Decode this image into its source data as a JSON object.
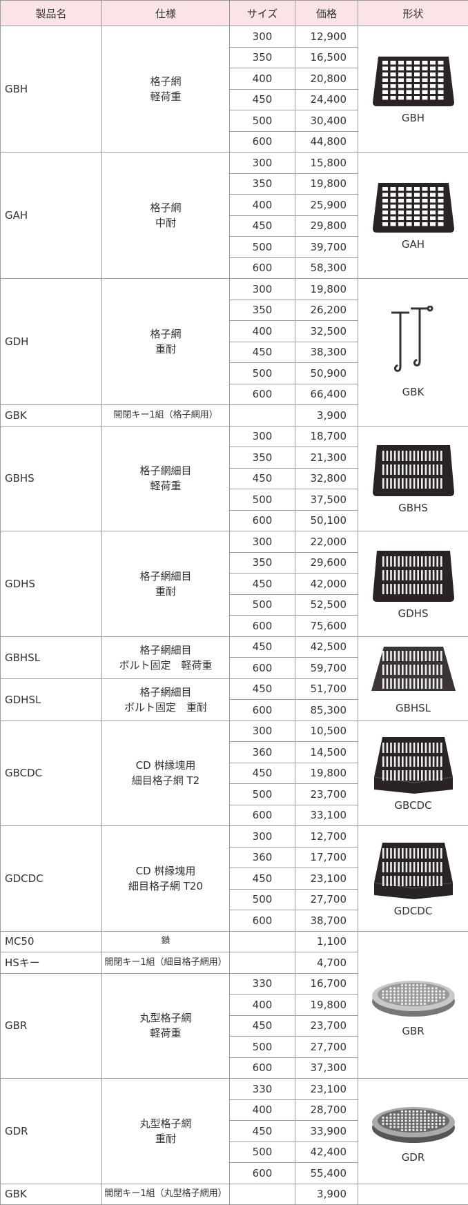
{
  "header": [
    "製品名",
    "仕様",
    "サイズ",
    "価格",
    "形状"
  ],
  "groups": [
    {
      "name": "GBH",
      "spec": [
        "格子網",
        "軽荷重"
      ],
      "rows": [
        {
          "size": 300,
          "price": "12,900"
        },
        {
          "size": 350,
          "price": "16,500"
        },
        {
          "size": 400,
          "price": "20,800"
        },
        {
          "size": 450,
          "price": "24,400"
        },
        {
          "size": 500,
          "price": "30,400"
        },
        {
          "size": 600,
          "price": "44,800"
        }
      ],
      "image": {
        "label": "GBH"
      }
    },
    {
      "name": "GAH",
      "spec": [
        "格子網",
        "中耐"
      ],
      "rows": [
        {
          "size": 300,
          "price": "15,800"
        },
        {
          "size": 350,
          "price": "19,800"
        },
        {
          "size": 400,
          "price": "25,900"
        },
        {
          "size": 450,
          "price": "29,800"
        },
        {
          "size": 500,
          "price": "39,700"
        },
        {
          "size": 600,
          "price": "58,300"
        }
      ],
      "image": {
        "label": "GAH"
      }
    },
    {
      "name": "GDH",
      "spec": [
        "格子網",
        "重耐"
      ],
      "rows": [
        {
          "size": 300,
          "price": "19,800"
        },
        {
          "size": 350,
          "price": "26,200"
        },
        {
          "size": 400,
          "price": "32,500"
        },
        {
          "size": 450,
          "price": "38,300"
        },
        {
          "size": 500,
          "price": "50,900"
        },
        {
          "size": 600,
          "price": "66,400"
        }
      ]
    },
    {
      "name": "GBK",
      "spec": [
        "開閉キー1組（格子網用）"
      ],
      "rows": [
        {
          "price": "3,900"
        }
      ],
      "image": {
        "label": "GBK"
      }
    },
    {
      "name": "GBHS",
      "spec": [
        "格子網細目",
        "軽荷重"
      ],
      "rows": [
        {
          "size": 300,
          "price": "18,700"
        },
        {
          "size": 350,
          "price": "21,300"
        },
        {
          "size": 450,
          "price": "32,800"
        },
        {
          "size": 500,
          "price": "37,500"
        },
        {
          "size": 600,
          "price": "50,100"
        }
      ],
      "image": {
        "label": "GBHS"
      }
    },
    {
      "name": "GDHS",
      "spec": [
        "格子網細目",
        "重耐"
      ],
      "rows": [
        {
          "size": 300,
          "price": "22,000"
        },
        {
          "size": 350,
          "price": "29,600"
        },
        {
          "size": 450,
          "price": "42,000"
        },
        {
          "size": 500,
          "price": "52,500"
        },
        {
          "size": 600,
          "price": "75,600"
        }
      ],
      "image": {
        "label": "GDHS"
      }
    },
    {
      "name": "GBHSL",
      "spec": [
        "格子網細目",
        "ボルト固定　軽荷重"
      ],
      "rows": [
        {
          "size": 450,
          "price": "42,500"
        },
        {
          "size": 600,
          "price": "59,700"
        }
      ]
    },
    {
      "name": "GDHSL",
      "spec": [
        "格子網細目",
        "ボルト固定　重耐"
      ],
      "rows": [
        {
          "size": 450,
          "price": "51,700"
        },
        {
          "size": 600,
          "price": "85,300"
        }
      ],
      "image": {
        "label": "GBHSL"
      }
    },
    {
      "name": "GBCDC",
      "spec": [
        "CD 桝縁塊用",
        "細目格子網 T2"
      ],
      "rows": [
        {
          "size": 300,
          "price": "10,500"
        },
        {
          "size": 360,
          "price": "14,500"
        },
        {
          "size": 450,
          "price": "19,800"
        },
        {
          "size": 500,
          "price": "23,700"
        },
        {
          "size": 600,
          "price": "33,100"
        }
      ],
      "image": {
        "label": "GBCDC"
      }
    },
    {
      "name": "GDCDC",
      "spec": [
        "CD 桝縁塊用",
        "細目格子網 T20"
      ],
      "rows": [
        {
          "size": 300,
          "price": "12,700"
        },
        {
          "size": 360,
          "price": "17,700"
        },
        {
          "size": 450,
          "price": "23,100"
        },
        {
          "size": 500,
          "price": "27,700"
        },
        {
          "size": 600,
          "price": "38,700"
        }
      ],
      "image": {
        "label": "GDCDC"
      }
    },
    {
      "name": "MC50",
      "spec": [
        "鎖"
      ],
      "rows": [
        {
          "price": "1,100"
        }
      ]
    },
    {
      "name": "HSキー",
      "spec": [
        "開閉キー1組（細目格子網用）"
      ],
      "rows": [
        {
          "price": "4,700"
        }
      ]
    },
    {
      "name": "GBR",
      "spec": [
        "丸型格子網",
        "軽荷重"
      ],
      "rows": [
        {
          "size": 330,
          "price": "16,700"
        },
        {
          "size": 400,
          "price": "19,800"
        },
        {
          "size": 450,
          "price": "23,700"
        },
        {
          "size": 500,
          "price": "27,700"
        },
        {
          "size": 600,
          "price": "37,300"
        }
      ],
      "image": {
        "label": "GBR"
      }
    },
    {
      "name": "GDR",
      "spec": [
        "丸型格子網",
        "重耐"
      ],
      "rows": [
        {
          "size": 330,
          "price": "23,100"
        },
        {
          "size": 400,
          "price": "28,700"
        },
        {
          "size": 450,
          "price": "33,900"
        },
        {
          "size": 500,
          "price": "42,400"
        },
        {
          "size": 600,
          "price": "55,400"
        }
      ],
      "image": {
        "label": "GDR"
      }
    },
    {
      "name": "GBK",
      "spec": [
        "開閉キー1組（丸型格子網用）"
      ],
      "rows": [
        {
          "price": "3,900"
        }
      ]
    }
  ]
}
